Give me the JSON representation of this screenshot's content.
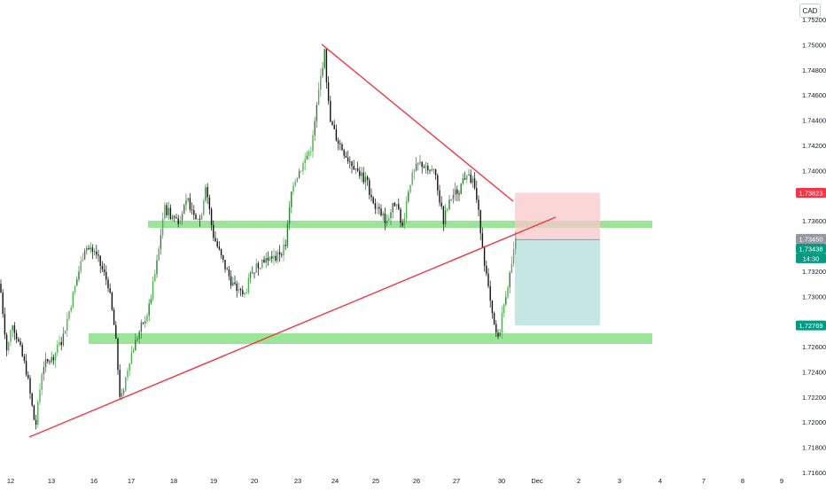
{
  "chart_data": {
    "type": "candlestick",
    "currency": "CAD",
    "y_ticks": [
      "1.75200",
      "1.75000",
      "1.74800",
      "1.74600",
      "1.74400",
      "1.74200",
      "1.74000",
      "1.73600",
      "1.73200",
      "1.73000",
      "1.72600",
      "1.72400",
      "1.72200",
      "1.72000",
      "1.71800",
      "1.71600"
    ],
    "x_ticks": [
      "12",
      "13",
      "16",
      "17",
      "18",
      "19",
      "20",
      "23",
      "24",
      "25",
      "26",
      "27",
      "30",
      "Dec",
      "2",
      "3",
      "4",
      "7",
      "8",
      "9"
    ],
    "ylim": [
      1.716,
      1.753
    ],
    "price_labels": [
      {
        "value": "1.73823",
        "color": "#f23645",
        "text_color": "#ffffff"
      },
      {
        "value": "1.73450",
        "color": "#9598a1",
        "text_color": "#ffffff"
      },
      {
        "value": "1.73438",
        "color": "#089981",
        "text_color": "#ffffff"
      },
      {
        "value": "14:30",
        "color": "#089981",
        "text_color": "#ffffff"
      },
      {
        "value": "1.72769",
        "color": "#089981",
        "text_color": "#ffffff"
      }
    ],
    "support_zones": [
      {
        "low": 1.7352,
        "high": 1.7359,
        "from": "17",
        "to": "Dec+2.8"
      },
      {
        "low": 1.7262,
        "high": 1.7269,
        "from": "16",
        "to": "Dec+2.8"
      }
    ],
    "trendlines": [
      {
        "name": "resistance",
        "color": "#f23645",
        "start_price": 1.75,
        "end_price": 1.7382
      },
      {
        "name": "support",
        "color": "#f23645",
        "start_price": 1.719,
        "end_price": 1.7363
      }
    ],
    "position": {
      "type": "short",
      "entry": 1.7345,
      "stop": 1.73823,
      "target": 1.72769
    }
  },
  "colors": {
    "up": "#26a69a",
    "up_alt": "#2e7d32",
    "down": "#111111",
    "zone": "#9be59b",
    "risk": "#f8c8c8",
    "reward": "#b2dfdb",
    "trend": "#f23645",
    "axis_text": "#131722"
  }
}
